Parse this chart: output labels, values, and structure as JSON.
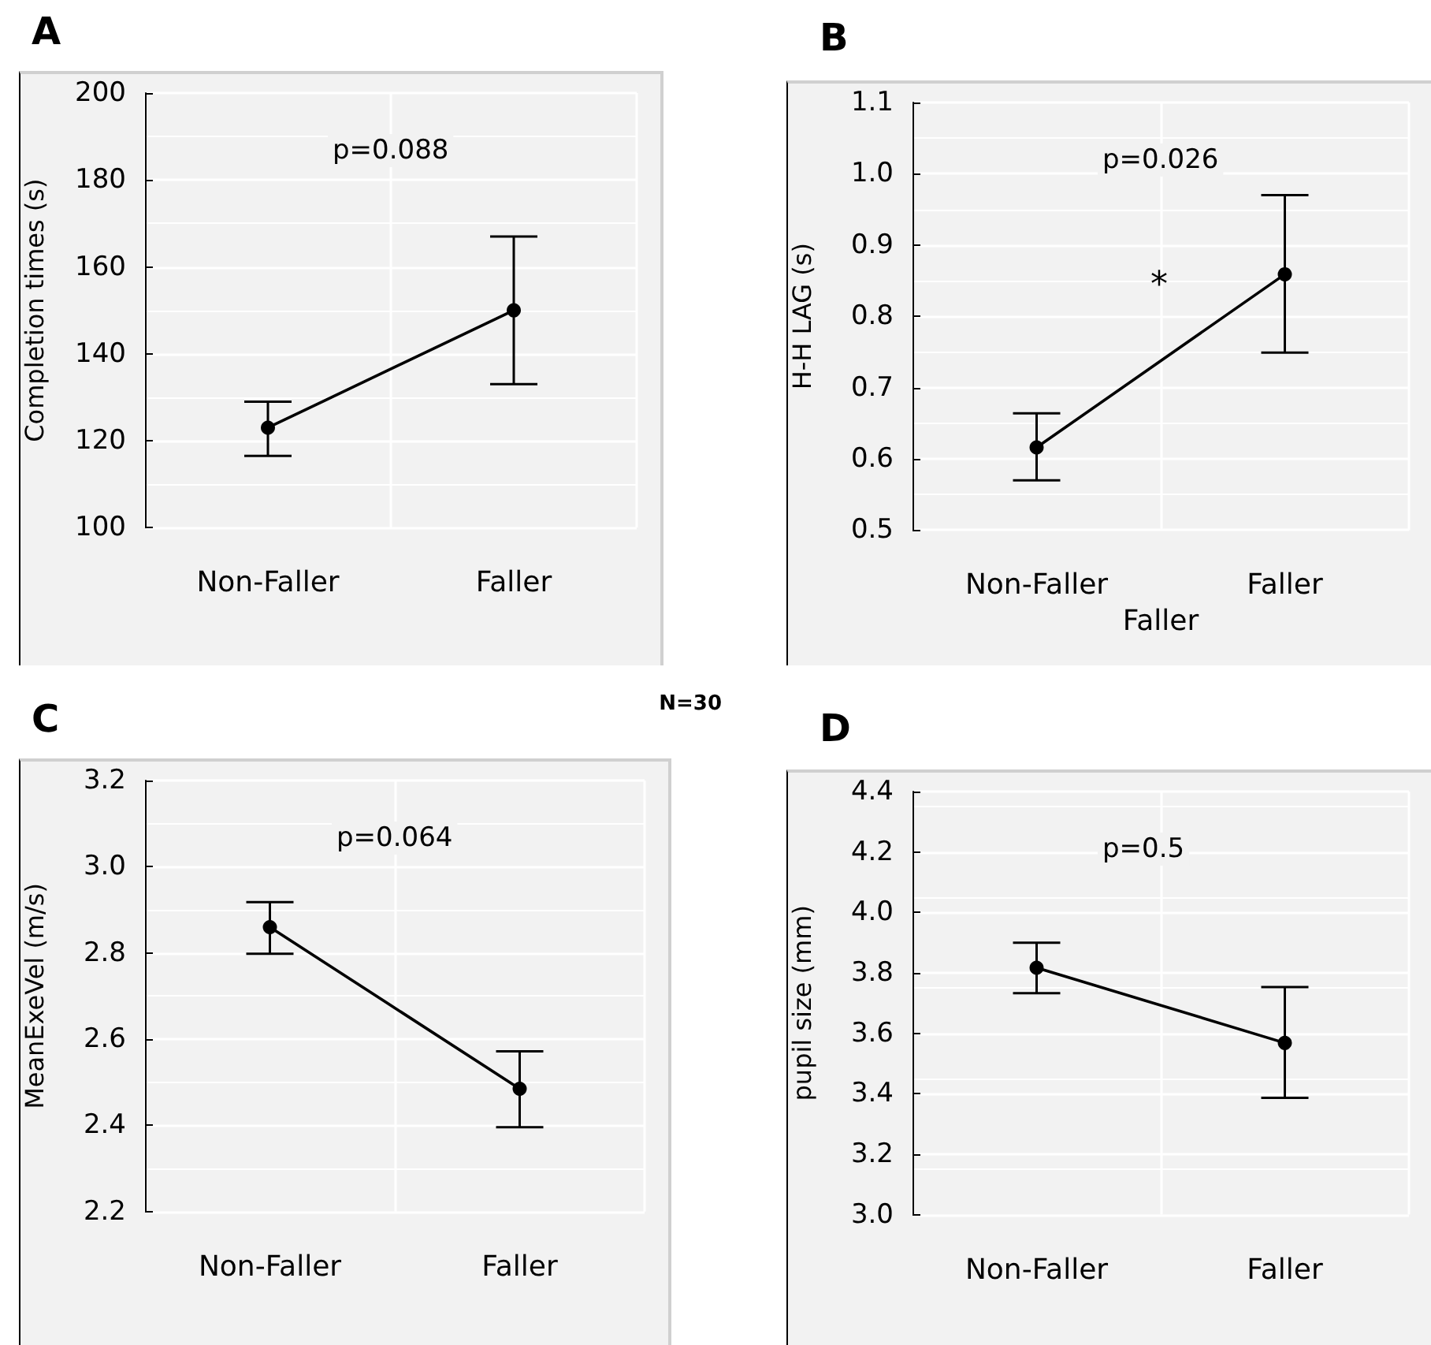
{
  "chart_data": [
    {
      "type": "line",
      "title": "A",
      "ylabel": "Completion times (s)",
      "categories": [
        "Non-Faller",
        "Faller"
      ],
      "series": [
        {
          "color": "#000000",
          "values": [
            123,
            150
          ],
          "errors": [
            [
              116.5,
              129
            ],
            [
              133,
              167
            ]
          ]
        }
      ],
      "ylim": [
        100,
        200
      ],
      "yticks": [
        100,
        120,
        140,
        160,
        180,
        200
      ],
      "grid": true,
      "marker": "circle",
      "line_style": "solid",
      "annotations": [
        "p=0.088"
      ]
    },
    {
      "type": "line",
      "title": "B",
      "xlabel": "Faller",
      "ylabel": "H-H LAG (s)",
      "categories": [
        "Non-Faller",
        "Faller"
      ],
      "series": [
        {
          "color": "#000000",
          "values": [
            0.616,
            0.859
          ],
          "errors": [
            [
              0.57,
              0.664
            ],
            [
              0.749,
              0.97
            ]
          ]
        }
      ],
      "ylim": [
        0.5,
        1.1
      ],
      "yticks": [
        0.5,
        0.6,
        0.7,
        0.8,
        0.9,
        {
          "value": 1.0,
          "label": "1.0"
        },
        1.1
      ],
      "grid": true,
      "marker": "circle",
      "line_style": "solid",
      "annotations": [
        "p=0.026",
        "*"
      ]
    },
    {
      "type": "line",
      "title": "C",
      "ylabel": "MeanExeVel (m/s)",
      "categories": [
        "Non-Faller",
        "Faller"
      ],
      "series": [
        {
          "color": "#000000",
          "values": [
            2.86,
            2.485
          ],
          "errors": [
            [
              2.798,
              2.918
            ],
            [
              2.396,
              2.572
            ]
          ]
        }
      ],
      "ylim": [
        2.2,
        3.2
      ],
      "yticks": [
        2.2,
        2.4,
        2.6,
        2.8,
        {
          "value": 3.0,
          "label": "3.0"
        },
        3.2
      ],
      "grid": true,
      "marker": "circle",
      "line_style": "solid",
      "annotations": [
        "p=0.064",
        "N=30"
      ]
    },
    {
      "type": "line",
      "title": "D",
      "ylabel": "pupil size (mm)",
      "categories": [
        "Non-Faller",
        "Faller"
      ],
      "series": [
        {
          "color": "#000000",
          "values": [
            3.817,
            3.568
          ],
          "errors": [
            [
              3.733,
              3.9
            ],
            [
              3.386,
              3.753
            ]
          ]
        }
      ],
      "ylim": [
        3.0,
        4.4
      ],
      "yticks": [
        {
          "value": 3.0,
          "label": "3.0"
        },
        3.2,
        3.4,
        3.6,
        3.8,
        {
          "value": 4.0,
          "label": "4.0"
        },
        4.2,
        4.4
      ],
      "grid": true,
      "marker": "circle",
      "line_style": "solid",
      "annotations": [
        "p=0.5"
      ]
    }
  ]
}
